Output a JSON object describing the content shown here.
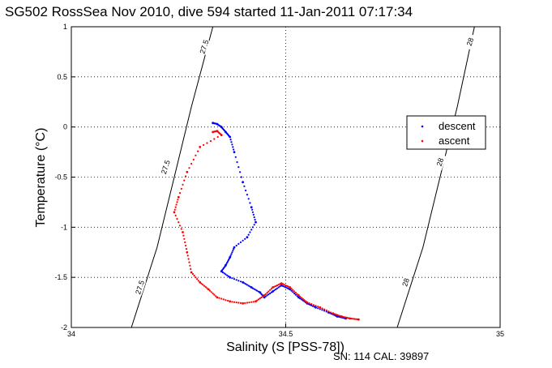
{
  "chart_data": {
    "type": "scatter",
    "title": "SG502 RossSea Nov 2010, dive 594 started 11-Jan-2011 07:17:34",
    "xlabel": "Salinity (S [PSS-78])",
    "ylabel": "Temperature (°C)",
    "xlim": [
      34,
      35
    ],
    "ylim": [
      -2,
      1
    ],
    "x_ticks": [
      "34",
      "34.5",
      "35"
    ],
    "y_ticks": [
      "1",
      "0.5",
      "0",
      "-0.5",
      "-1",
      "-1.5",
      "-2"
    ],
    "grid": true,
    "legend_position": "right",
    "footer": "SN: 114  CAL: 39897",
    "contours": [
      {
        "label": "27.5",
        "points": [
          [
            34.14,
            -2.0
          ],
          [
            34.2,
            -1.2
          ],
          [
            34.24,
            -0.5
          ],
          [
            34.28,
            0.2
          ],
          [
            34.33,
            1.0
          ]
        ],
        "label_at": [
          [
            34.16,
            -1.6
          ],
          [
            34.22,
            -0.4
          ],
          [
            34.31,
            0.8
          ]
        ]
      },
      {
        "label": "28",
        "points": [
          [
            34.76,
            -2.0
          ],
          [
            34.82,
            -1.2
          ],
          [
            34.86,
            -0.5
          ],
          [
            34.9,
            0.2
          ],
          [
            34.94,
            1.0
          ]
        ],
        "label_at": [
          [
            34.78,
            -1.55
          ],
          [
            34.86,
            -0.35
          ],
          [
            34.93,
            0.85
          ]
        ]
      }
    ],
    "series": [
      {
        "name": "descent",
        "color": "#0000ff",
        "points": [
          [
            34.33,
            0.04
          ],
          [
            34.34,
            0.03
          ],
          [
            34.35,
            0.0
          ],
          [
            34.36,
            -0.05
          ],
          [
            34.37,
            -0.1
          ],
          [
            34.38,
            -0.25
          ],
          [
            34.4,
            -0.55
          ],
          [
            34.42,
            -0.8
          ],
          [
            34.43,
            -0.95
          ],
          [
            34.41,
            -1.1
          ],
          [
            34.38,
            -1.2
          ],
          [
            34.37,
            -1.3
          ],
          [
            34.36,
            -1.38
          ],
          [
            34.35,
            -1.44
          ],
          [
            34.37,
            -1.5
          ],
          [
            34.4,
            -1.55
          ],
          [
            34.42,
            -1.6
          ],
          [
            34.44,
            -1.65
          ],
          [
            34.45,
            -1.7
          ],
          [
            34.47,
            -1.64
          ],
          [
            34.49,
            -1.58
          ],
          [
            34.51,
            -1.62
          ],
          [
            34.53,
            -1.7
          ],
          [
            34.55,
            -1.76
          ],
          [
            34.57,
            -1.8
          ],
          [
            34.6,
            -1.85
          ],
          [
            34.62,
            -1.89
          ],
          [
            34.64,
            -1.91
          ]
        ]
      },
      {
        "name": "ascent",
        "color": "#ff0000",
        "points": [
          [
            34.33,
            -0.05
          ],
          [
            34.34,
            -0.04
          ],
          [
            34.35,
            -0.08
          ],
          [
            34.3,
            -0.2
          ],
          [
            34.27,
            -0.45
          ],
          [
            34.25,
            -0.7
          ],
          [
            34.24,
            -0.85
          ],
          [
            34.26,
            -1.05
          ],
          [
            34.27,
            -1.25
          ],
          [
            34.28,
            -1.45
          ],
          [
            34.3,
            -1.55
          ],
          [
            34.32,
            -1.62
          ],
          [
            34.34,
            -1.7
          ],
          [
            34.37,
            -1.74
          ],
          [
            34.4,
            -1.76
          ],
          [
            34.43,
            -1.74
          ],
          [
            34.45,
            -1.68
          ],
          [
            34.47,
            -1.6
          ],
          [
            34.49,
            -1.56
          ],
          [
            34.51,
            -1.6
          ],
          [
            34.53,
            -1.68
          ],
          [
            34.55,
            -1.75
          ],
          [
            34.58,
            -1.8
          ],
          [
            34.61,
            -1.86
          ],
          [
            34.63,
            -1.89
          ],
          [
            34.65,
            -1.91
          ],
          [
            34.67,
            -1.92
          ]
        ]
      }
    ]
  }
}
